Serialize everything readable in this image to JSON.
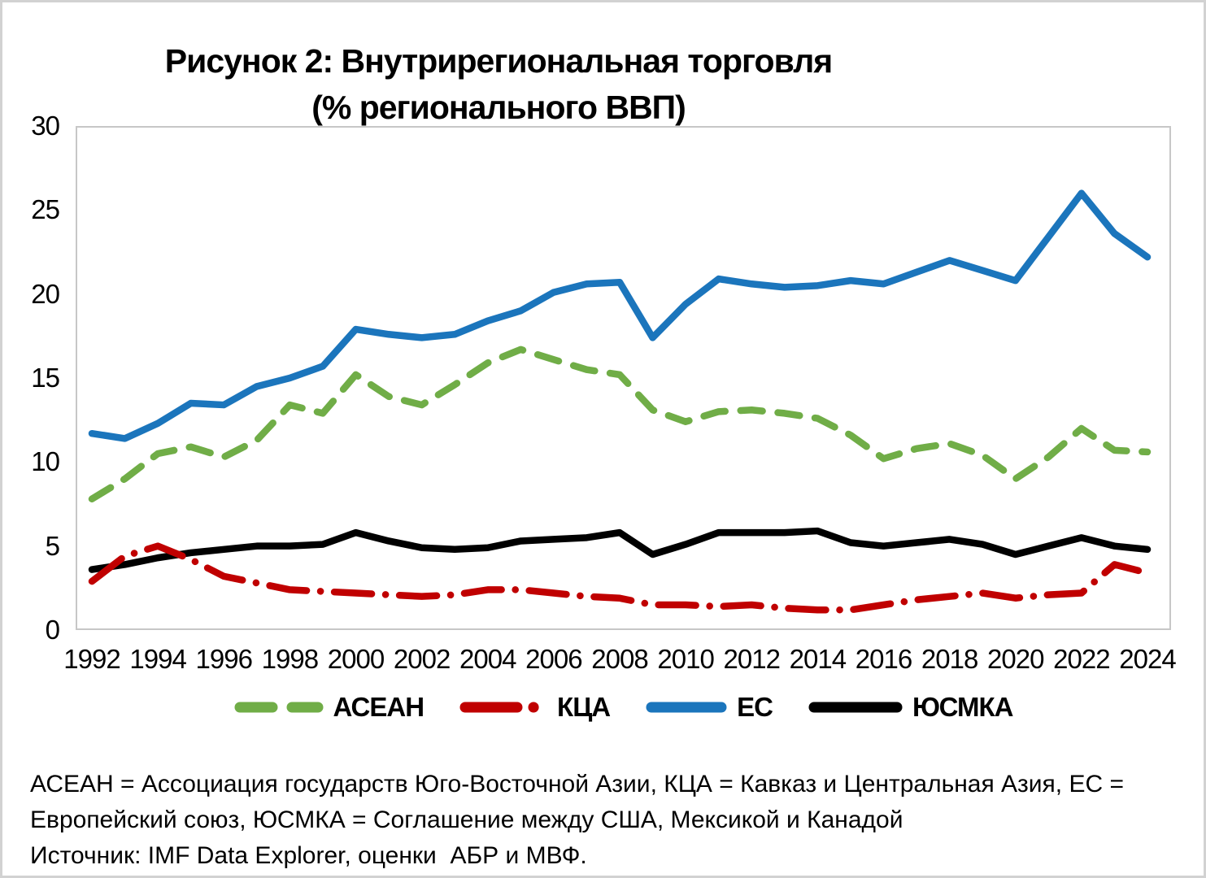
{
  "figure": {
    "title_line1": "Рисунок 2: Внутрирегиональная торговля",
    "title_line2": "(% регионального ВВП)"
  },
  "chart_data": {
    "type": "line",
    "title": "Рисунок 2: Внутрирегиональная торговля (% регионального ВВП)",
    "xlabel": "",
    "ylabel": "",
    "ylim": [
      0,
      30
    ],
    "grid": false,
    "legend_position": "bottom",
    "x": [
      1992,
      1993,
      1994,
      1995,
      1996,
      1997,
      1998,
      1999,
      2000,
      2001,
      2002,
      2003,
      2004,
      2005,
      2006,
      2007,
      2008,
      2009,
      2010,
      2011,
      2012,
      2013,
      2014,
      2015,
      2016,
      2017,
      2018,
      2019,
      2020,
      2021,
      2022,
      2023,
      2024
    ],
    "x_ticks": [
      1992,
      1994,
      1996,
      1998,
      2000,
      2002,
      2004,
      2006,
      2008,
      2010,
      2012,
      2014,
      2016,
      2018,
      2020,
      2022,
      2024
    ],
    "y_ticks": [
      30,
      25,
      20,
      15,
      10,
      5,
      0
    ],
    "draw_order": [
      0,
      2,
      3,
      1
    ],
    "series": [
      {
        "name": "АСЕАН",
        "color": "#70AD47",
        "style": "dashed",
        "values": [
          7.8,
          9.0,
          10.5,
          10.9,
          10.3,
          11.3,
          13.4,
          12.9,
          15.2,
          13.9,
          13.4,
          14.6,
          15.9,
          16.7,
          16.1,
          15.5,
          15.2,
          13.1,
          12.4,
          13.0,
          13.1,
          12.9,
          12.6,
          11.6,
          10.2,
          10.8,
          11.1,
          10.4,
          9.0,
          10.3,
          12.0,
          10.7,
          10.6
        ]
      },
      {
        "name": "КЦА",
        "color": "#C00000",
        "style": "dash-dot",
        "values": [
          2.9,
          4.4,
          5.0,
          4.2,
          3.2,
          2.8,
          2.4,
          2.3,
          2.2,
          2.1,
          2.0,
          2.1,
          2.4,
          2.4,
          2.2,
          2.0,
          1.9,
          1.5,
          1.5,
          1.4,
          1.5,
          1.3,
          1.2,
          1.2,
          1.5,
          1.8,
          2.0,
          2.2,
          1.9,
          2.1,
          2.2,
          3.9,
          3.4
        ]
      },
      {
        "name": "ЕС",
        "color": "#1B75BC",
        "style": "solid",
        "values": [
          11.7,
          11.4,
          12.3,
          13.5,
          13.4,
          14.5,
          15.0,
          15.7,
          17.9,
          17.6,
          17.4,
          17.6,
          18.4,
          19.0,
          20.1,
          20.6,
          20.7,
          17.4,
          19.4,
          20.9,
          20.6,
          20.4,
          20.5,
          20.8,
          20.6,
          21.3,
          22.0,
          21.4,
          20.8,
          23.4,
          26.0,
          23.6,
          22.2
        ]
      },
      {
        "name": "ЮСМКА",
        "color": "#000000",
        "style": "solid",
        "values": [
          3.6,
          3.9,
          4.3,
          4.6,
          4.8,
          5.0,
          5.0,
          5.1,
          5.8,
          5.3,
          4.9,
          4.8,
          4.9,
          5.3,
          5.4,
          5.5,
          5.8,
          4.5,
          5.1,
          5.8,
          5.8,
          5.8,
          5.9,
          5.2,
          5.0,
          5.2,
          5.4,
          5.1,
          4.5,
          5.0,
          5.5,
          5.0,
          4.8
        ]
      }
    ]
  },
  "footnote": {
    "line1": "АСЕАН = Ассоциация государств Юго-Восточной Азии, КЦА = Кавказ и Центральная Азия, ЕС =",
    "line2": "Европейский союз, ЮСМКА = Соглашение между США, Мексикой и Канадой",
    "line3": "Источник: IMF Data Explorer, оценки  АБР и МВФ."
  }
}
